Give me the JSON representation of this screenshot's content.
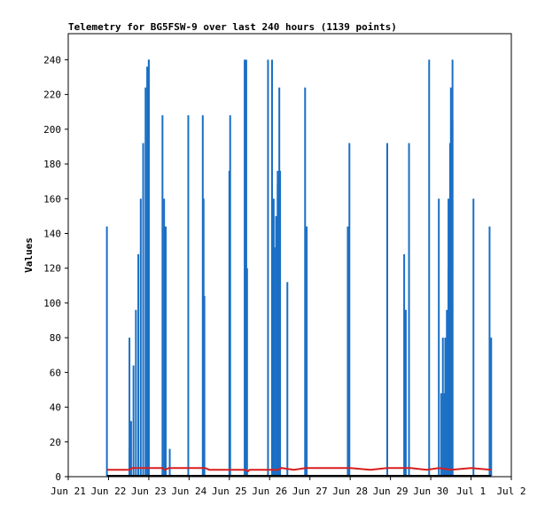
{
  "chart_data": {
    "type": "line",
    "title": "Telemetry for BG5FSW-9 over last 240 hours (1139 points)",
    "xlabel": "",
    "ylabel": "Values",
    "ylim": [
      0,
      255
    ],
    "yticks": [
      0,
      20,
      40,
      60,
      80,
      100,
      120,
      140,
      160,
      180,
      200,
      220,
      240
    ],
    "xlim": [
      0,
      11
    ],
    "xticks": [
      {
        "x": 0,
        "label": "Jun 21"
      },
      {
        "x": 1,
        "label": "Jun 22"
      },
      {
        "x": 2,
        "label": "Jun 23"
      },
      {
        "x": 3,
        "label": "Jun 24"
      },
      {
        "x": 4,
        "label": "Jun 25"
      },
      {
        "x": 5,
        "label": "Jun 26"
      },
      {
        "x": 6,
        "label": "Jun 27"
      },
      {
        "x": 7,
        "label": "Jun 28"
      },
      {
        "x": 8,
        "label": "Jun 29"
      },
      {
        "x": 9,
        "label": "Jun 30"
      },
      {
        "x": 10,
        "label": "Jul 1"
      },
      {
        "x": 11,
        "label": "Jul 2"
      }
    ],
    "grid": false,
    "legend": "none",
    "colors": {
      "spikes": "#1a6fc4",
      "ramp": "#1a6fc4",
      "level": "#d81e1e",
      "base": "#000000"
    },
    "series": [
      {
        "style": "vertical-spikes",
        "points": [
          [
            0.96,
            144
          ],
          [
            1.52,
            80
          ],
          [
            2.0,
            240
          ],
          [
            2.34,
            208
          ],
          [
            2.38,
            160
          ],
          [
            2.42,
            144
          ],
          [
            2.52,
            16
          ],
          [
            2.98,
            208
          ],
          [
            3.34,
            208
          ],
          [
            3.36,
            160
          ],
          [
            3.38,
            104
          ],
          [
            4.0,
            176
          ],
          [
            4.02,
            208
          ],
          [
            4.38,
            240
          ],
          [
            4.42,
            240
          ],
          [
            4.44,
            120
          ],
          [
            4.96,
            240
          ],
          [
            5.06,
            240
          ],
          [
            5.1,
            160
          ],
          [
            5.2,
            176
          ],
          [
            5.24,
            224
          ],
          [
            5.26,
            176
          ],
          [
            5.44,
            112
          ],
          [
            5.88,
            224
          ],
          [
            5.92,
            144
          ],
          [
            6.94,
            144
          ],
          [
            6.98,
            192
          ],
          [
            7.92,
            192
          ],
          [
            8.34,
            128
          ],
          [
            8.38,
            96
          ],
          [
            8.46,
            192
          ],
          [
            8.96,
            240
          ],
          [
            9.2,
            160
          ],
          [
            9.26,
            48
          ],
          [
            9.3,
            80
          ],
          [
            9.34,
            48
          ],
          [
            9.36,
            80
          ],
          [
            9.4,
            96
          ],
          [
            9.44,
            160
          ],
          [
            9.48,
            192
          ],
          [
            9.5,
            224
          ],
          [
            9.54,
            240
          ],
          [
            10.06,
            160
          ],
          [
            10.46,
            144
          ],
          [
            10.5,
            80
          ]
        ]
      },
      {
        "style": "ramp",
        "points": [
          [
            1.52,
            16
          ],
          [
            1.56,
            32
          ],
          [
            1.62,
            64
          ],
          [
            1.68,
            96
          ],
          [
            1.74,
            128
          ],
          [
            1.8,
            160
          ],
          [
            1.86,
            192
          ],
          [
            1.92,
            224
          ],
          [
            1.96,
            236
          ],
          [
            2.0,
            240
          ],
          [
            5.12,
            132
          ],
          [
            5.16,
            150
          ],
          [
            5.2,
            168
          ],
          [
            5.24,
            176
          ],
          [
            9.44,
            120
          ],
          [
            9.5,
            170
          ],
          [
            9.54,
            205
          ]
        ]
      },
      {
        "style": "line",
        "points": [
          [
            0.96,
            4
          ],
          [
            1.52,
            4
          ],
          [
            1.58,
            5
          ],
          [
            2.34,
            5
          ],
          [
            2.38,
            4
          ],
          [
            2.4,
            4
          ],
          [
            2.5,
            5
          ],
          [
            3.4,
            5
          ],
          [
            3.5,
            4
          ],
          [
            4.4,
            4
          ],
          [
            4.46,
            3
          ],
          [
            4.5,
            4
          ],
          [
            5.2,
            4
          ],
          [
            5.3,
            5
          ],
          [
            5.6,
            4
          ],
          [
            5.9,
            5
          ],
          [
            6.9,
            5
          ],
          [
            7.0,
            5
          ],
          [
            7.5,
            4
          ],
          [
            7.92,
            5
          ],
          [
            8.5,
            5
          ],
          [
            8.9,
            4
          ],
          [
            9.2,
            5
          ],
          [
            9.5,
            4
          ],
          [
            10.0,
            5
          ],
          [
            10.5,
            4
          ]
        ]
      },
      {
        "style": "base",
        "points": [
          [
            0.96,
            0
          ],
          [
            10.5,
            0
          ]
        ]
      }
    ]
  }
}
